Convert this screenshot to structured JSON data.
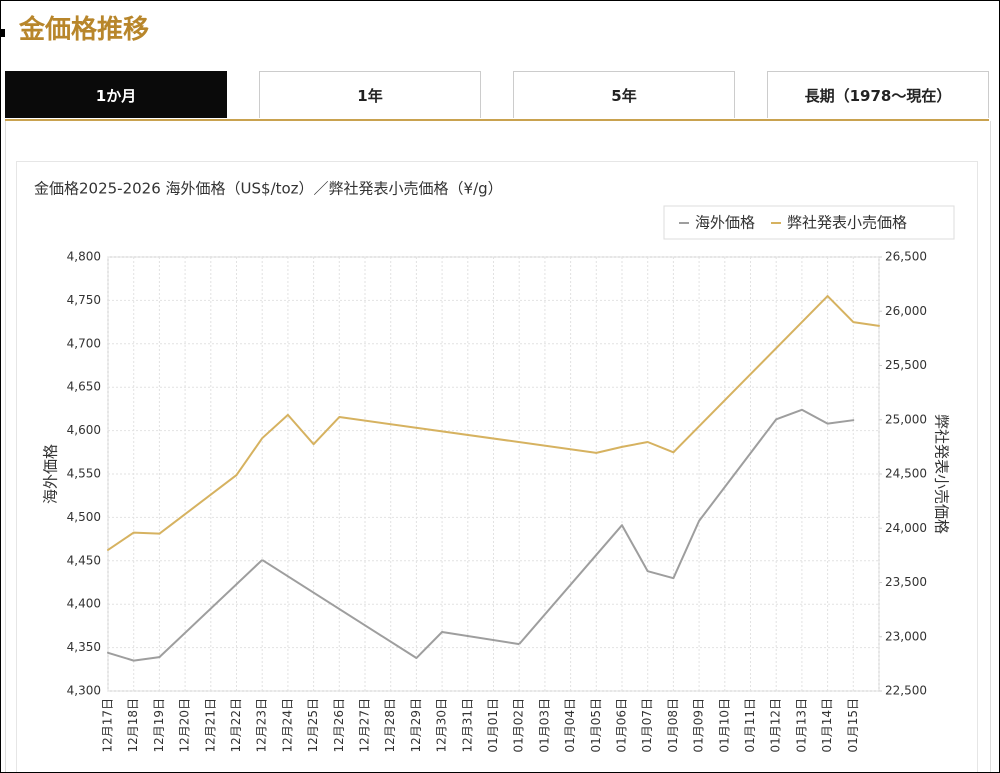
{
  "header": {
    "title": "金価格推移"
  },
  "tabs": {
    "items": [
      "1か月",
      "1年",
      "5年",
      "長期（1978～現在）"
    ],
    "active": 0
  },
  "chart_data": {
    "type": "line",
    "title": "金価格2025-2026 海外価格（US$/toz）／弊社発表小売価格（¥/g）",
    "y_label": "海外価格",
    "y2_label": "弊社発表小売価格",
    "connect_gaps": true,
    "grid": true,
    "legend": "top-right",
    "categories": [
      "12月17日",
      "12月18日",
      "12月19日",
      "12月20日",
      "12月21日",
      "12月22日",
      "12月23日",
      "12月24日",
      "12月25日",
      "12月26日",
      "12月27日",
      "12月28日",
      "12月29日",
      "12月30日",
      "12月31日",
      "01月01日",
      "01月02日",
      "01月03日",
      "01月04日",
      "01月05日",
      "01月06日",
      "01月07日",
      "01月08日",
      "01月09日",
      "01月10日",
      "01月11日",
      "01月12日",
      "01月13日",
      "01月14日",
      "01月15日",
      null
    ],
    "series": [
      {
        "name": "海外価格",
        "color": "#9e9e9e",
        "axis": "y",
        "values": [
          4344,
          4335,
          4339,
          null,
          null,
          null,
          4451,
          null,
          null,
          null,
          null,
          null,
          4338,
          4368,
          null,
          null,
          4354,
          null,
          null,
          null,
          4491,
          4438,
          4430,
          4496,
          null,
          null,
          4613,
          4624,
          4608,
          4612,
          null
        ]
      },
      {
        "name": "弊社発表小売価格",
        "color": "#d6b260",
        "axis": "y2",
        "values": [
          23800,
          23960,
          23950,
          null,
          null,
          24490,
          24830,
          25045,
          24775,
          25025,
          null,
          null,
          null,
          null,
          null,
          null,
          null,
          null,
          null,
          24695,
          24750,
          24795,
          24700,
          null,
          null,
          null,
          null,
          null,
          26140,
          25900,
          25865
        ]
      }
    ],
    "ylim": [
      4300,
      4800
    ],
    "yticks": [
      {
        "value": 4300,
        "label": "4,300"
      },
      {
        "value": 4350,
        "label": "4,350"
      },
      {
        "value": 4400,
        "label": "4,400"
      },
      {
        "value": 4450,
        "label": "4,450"
      },
      {
        "value": 4500,
        "label": "4,500"
      },
      {
        "value": 4550,
        "label": "4,550"
      },
      {
        "value": 4600,
        "label": "4,600"
      },
      {
        "value": 4650,
        "label": "4,650"
      },
      {
        "value": 4700,
        "label": "4,700"
      },
      {
        "value": 4750,
        "label": "4,750"
      },
      {
        "value": 4800,
        "label": "4,800"
      }
    ],
    "y2lim": [
      22500,
      26500
    ],
    "y2ticks": [
      {
        "value": 22500,
        "label": "22,500"
      },
      {
        "value": 23000,
        "label": "23,000"
      },
      {
        "value": 23500,
        "label": "23,500"
      },
      {
        "value": 24000,
        "label": "24,000"
      },
      {
        "value": 24500,
        "label": "24,500"
      },
      {
        "value": 25000,
        "label": "25,000"
      },
      {
        "value": 25500,
        "label": "25,500"
      },
      {
        "value": 26000,
        "label": "26,000"
      },
      {
        "value": 26500,
        "label": "26,500"
      }
    ]
  }
}
